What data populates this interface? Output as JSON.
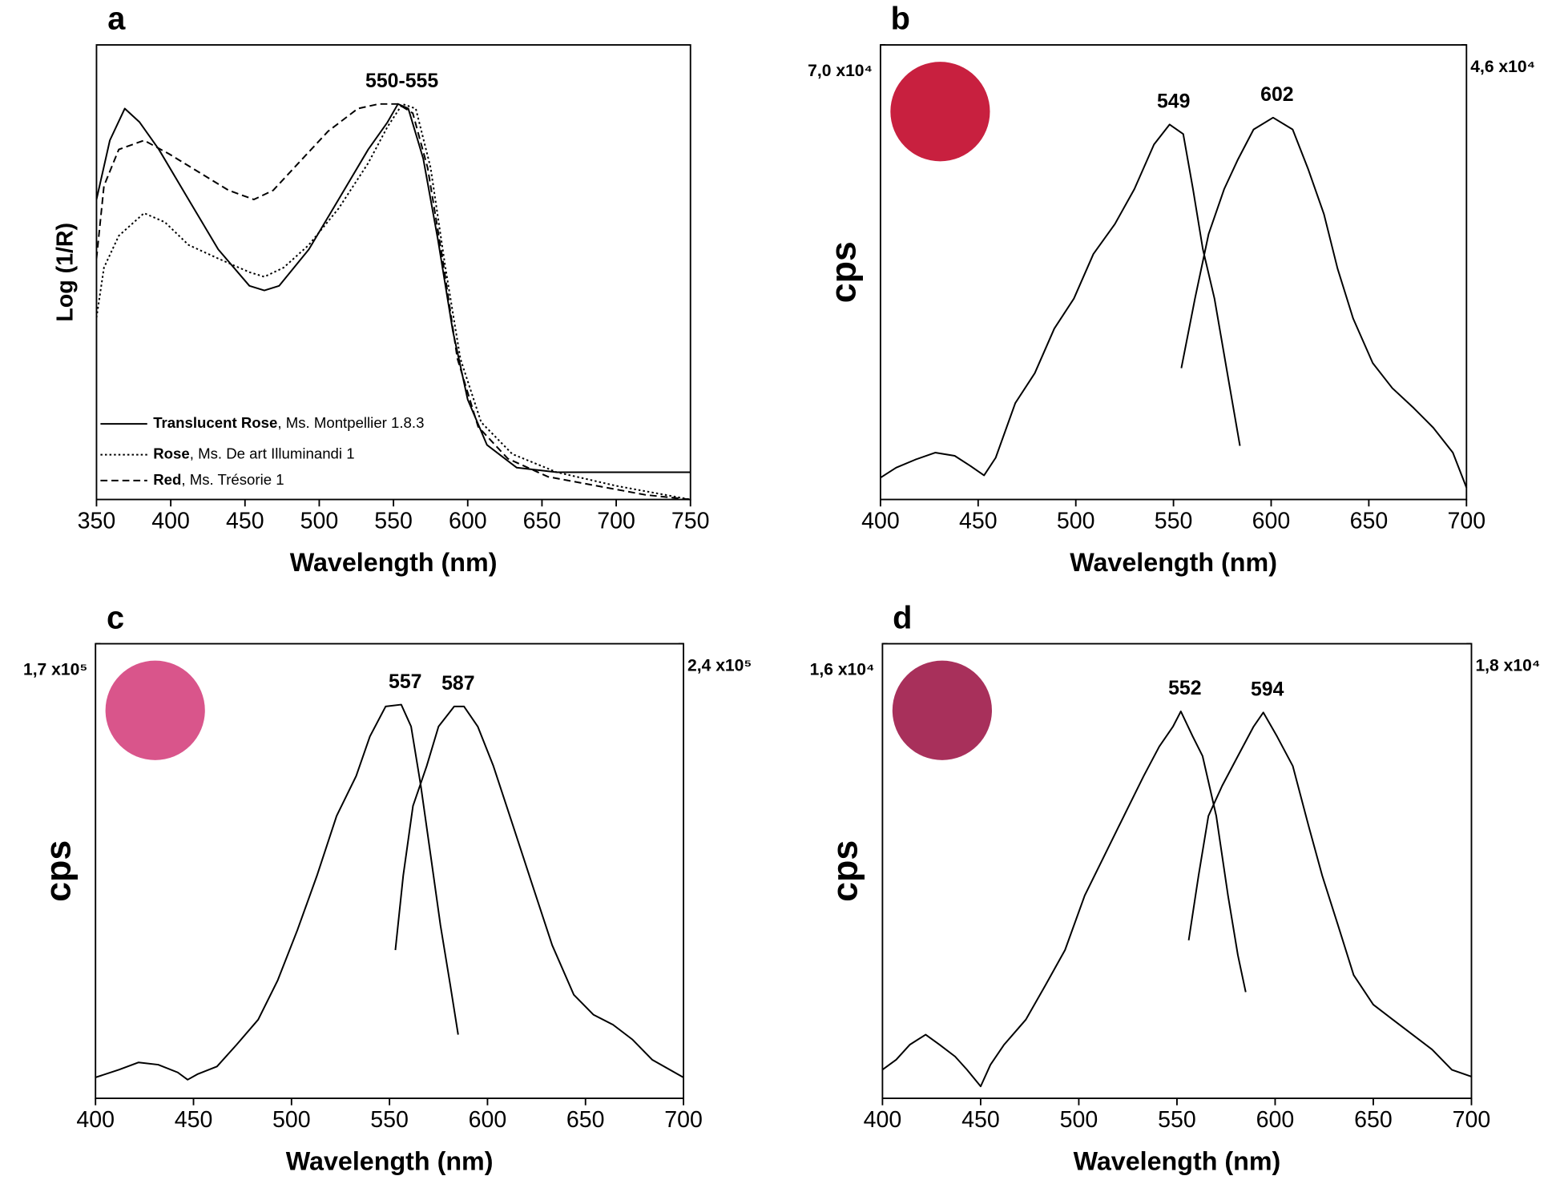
{
  "chart_data": [
    {
      "type": "line",
      "panel": "a",
      "xlabel": "Wavelength (nm)",
      "ylabel": "Log (1/R)",
      "xlim": [
        350,
        750
      ],
      "xticks": [
        350,
        400,
        450,
        500,
        550,
        600,
        650,
        700,
        750
      ],
      "ylim": [
        0,
        1
      ],
      "annotations": [
        {
          "text": "550-555"
        }
      ],
      "legend": "lower left",
      "series": [
        {
          "name": "Translucent Rose",
          "detail": ", Ms. Montpellier 1.8.3",
          "color": "#000000",
          "dash": "solid",
          "x": [
            350,
            359,
            369,
            379,
            392,
            412,
            432,
            453,
            463,
            473,
            493,
            513,
            533,
            546,
            553,
            560,
            570,
            580,
            590,
            600,
            613,
            633,
            660,
            687,
            750
          ],
          "values": [
            0.66,
            0.79,
            0.86,
            0.83,
            0.77,
            0.66,
            0.55,
            0.47,
            0.46,
            0.47,
            0.55,
            0.66,
            0.77,
            0.83,
            0.87,
            0.86,
            0.75,
            0.57,
            0.37,
            0.22,
            0.12,
            0.07,
            0.06,
            0.06,
            0.06
          ]
        },
        {
          "name": "Rose",
          "detail": ", Ms. De art Illuminandi 1",
          "color": "#000000",
          "dash": "dotted",
          "x": [
            350,
            355,
            365,
            382,
            396,
            412,
            432,
            453,
            463,
            476,
            493,
            513,
            533,
            546,
            556,
            565,
            575,
            585,
            595,
            609,
            630,
            660,
            700,
            750
          ],
          "values": [
            0.4,
            0.51,
            0.58,
            0.63,
            0.61,
            0.56,
            0.53,
            0.5,
            0.49,
            0.51,
            0.56,
            0.64,
            0.74,
            0.82,
            0.87,
            0.86,
            0.73,
            0.51,
            0.31,
            0.17,
            0.1,
            0.06,
            0.03,
            0.0
          ]
        },
        {
          "name": "Red",
          "detail": ", Ms. Trésorie 1",
          "color": "#000000",
          "dash": "dashed",
          "x": [
            350,
            355,
            365,
            382,
            399,
            419,
            439,
            456,
            469,
            486,
            506,
            526,
            540,
            553,
            563,
            573,
            583,
            593,
            607,
            627,
            654,
            687,
            720,
            750
          ],
          "values": [
            0.53,
            0.69,
            0.77,
            0.79,
            0.76,
            0.72,
            0.68,
            0.66,
            0.68,
            0.74,
            0.81,
            0.86,
            0.87,
            0.87,
            0.85,
            0.73,
            0.53,
            0.31,
            0.16,
            0.09,
            0.05,
            0.03,
            0.01,
            0.0
          ]
        }
      ]
    },
    {
      "type": "line",
      "panel": "b",
      "xlabel": "Wavelength (nm)",
      "ylabel": "cps",
      "swatch_color": "#c8203f",
      "xlim": [
        400,
        700
      ],
      "xticks": [
        400,
        450,
        500,
        550,
        600,
        650,
        700
      ],
      "ylim": [
        0,
        70000
      ],
      "yticks": [
        {
          "value": 70000,
          "label": "7,0 x10⁴"
        }
      ],
      "y2lim": [
        0,
        46000
      ],
      "y2ticks": [
        {
          "value": 46000,
          "label": "4,6 x10⁴"
        }
      ],
      "annotations": [
        {
          "text": "549"
        },
        {
          "text": "602"
        }
      ],
      "series": [
        {
          "color": "#000000",
          "dash": "solid",
          "x": [
            400,
            408,
            418,
            428,
            438,
            446,
            453,
            459,
            469,
            479,
            489,
            499,
            509,
            520,
            530,
            540,
            548,
            555,
            560,
            565,
            571,
            578,
            584
          ],
          "values": [
            3360,
            4900,
            6160,
            7210,
            6720,
            5180,
            3710,
            6440,
            14840,
            19460,
            26320,
            30940,
            37800,
            42420,
            47810,
            54670,
            57750,
            56280,
            47810,
            38570,
            30940,
            18690,
            8260
          ]
        },
        {
          "color": "#000000",
          "dash": "solid",
          "axis": "y2",
          "x": [
            554,
            561,
            568,
            576,
            583,
            591,
            601,
            611,
            619,
            627,
            634,
            642,
            652,
            662,
            673,
            683,
            693,
            700
          ],
          "values": [
            13290,
            20330,
            26860,
            31420,
            34410,
            37440,
            38640,
            37440,
            33400,
            28890,
            23370,
            18310,
            13800,
            11270,
            9250,
            7270,
            4740,
            1200
          ]
        }
      ]
    },
    {
      "type": "line",
      "panel": "c",
      "xlabel": "Wavelength (nm)",
      "ylabel": "cps",
      "swatch_color": "#d9558b",
      "xlim": [
        400,
        700
      ],
      "xticks": [
        400,
        450,
        500,
        550,
        600,
        650,
        700
      ],
      "ylim": [
        0,
        170000
      ],
      "yticks": [
        {
          "value": 170000,
          "label": "1,7 x10⁵"
        }
      ],
      "y2lim": [
        0,
        240000
      ],
      "y2ticks": [
        {
          "value": 240000,
          "label": "2,4 x10⁵"
        }
      ],
      "annotations": [
        {
          "text": "557"
        },
        {
          "text": "587"
        }
      ],
      "series": [
        {
          "color": "#000000",
          "dash": "solid",
          "x": [
            400,
            412,
            422,
            432,
            442,
            447,
            452,
            462,
            472,
            483,
            493,
            503,
            513,
            523,
            533,
            540,
            548,
            556,
            561,
            566,
            571,
            576,
            581,
            585
          ],
          "values": [
            7820,
            10710,
            13430,
            12580,
            9690,
            6970,
            9010,
            11900,
            20060,
            29410,
            44200,
            62900,
            83300,
            105570,
            120530,
            135320,
            146540,
            147220,
            139060,
            116790,
            90780,
            64770,
            42330,
            23800
          ]
        },
        {
          "color": "#000000",
          "dash": "solid",
          "axis": "y2",
          "x": [
            553,
            557,
            562,
            569,
            575,
            583,
            588,
            595,
            603,
            613,
            623,
            633,
            644,
            654,
            664,
            674,
            684,
            700
          ],
          "values": [
            78240,
            117600,
            154320,
            175440,
            196320,
            206880,
            206880,
            196320,
            175440,
            144000,
            112320,
            80880,
            54720,
            44160,
            38880,
            30960,
            20400,
            11040
          ]
        }
      ]
    },
    {
      "type": "line",
      "panel": "d",
      "xlabel": "Wavelength (nm)",
      "ylabel": "cps",
      "swatch_color": "#a8305b",
      "xlim": [
        400,
        700
      ],
      "xticks": [
        400,
        450,
        500,
        550,
        600,
        650,
        700
      ],
      "ylim": [
        0,
        16000
      ],
      "yticks": [
        {
          "value": 16000,
          "label": "1,6 x10⁴"
        }
      ],
      "y2lim": [
        0,
        18000
      ],
      "y2ticks": [
        {
          "value": 18000,
          "label": "1,8 x10⁴"
        }
      ],
      "annotations": [
        {
          "text": "552"
        },
        {
          "text": "594"
        }
      ],
      "series": [
        {
          "color": "#000000",
          "dash": "solid",
          "x": [
            400,
            407,
            414,
            422,
            429,
            437,
            443,
            450,
            455,
            462,
            473,
            483,
            493,
            503,
            513,
            523,
            533,
            541,
            548,
            552,
            558,
            563,
            570,
            576,
            581,
            585
          ],
          "values": [
            1010,
            1360,
            1890,
            2240,
            1890,
            1470,
            1010,
            420,
            1180,
            1890,
            2770,
            3980,
            5220,
            7140,
            8540,
            9940,
            11340,
            12380,
            13090,
            13620,
            12740,
            12050,
            9940,
            7140,
            5040,
            3740
          ]
        },
        {
          "color": "#000000",
          "dash": "solid",
          "axis": "y2",
          "x": [
            556,
            561,
            566,
            573,
            581,
            589,
            594,
            601,
            609,
            617,
            624,
            632,
            640,
            650,
            660,
            670,
            680,
            690,
            700
          ],
          "values": [
            6260,
            8820,
            11180,
            12370,
            13550,
            14720,
            15280,
            14330,
            13160,
            10800,
            8820,
            6860,
            4880,
            3710,
            3110,
            2520,
            1930,
            1130,
            860
          ]
        }
      ]
    }
  ]
}
